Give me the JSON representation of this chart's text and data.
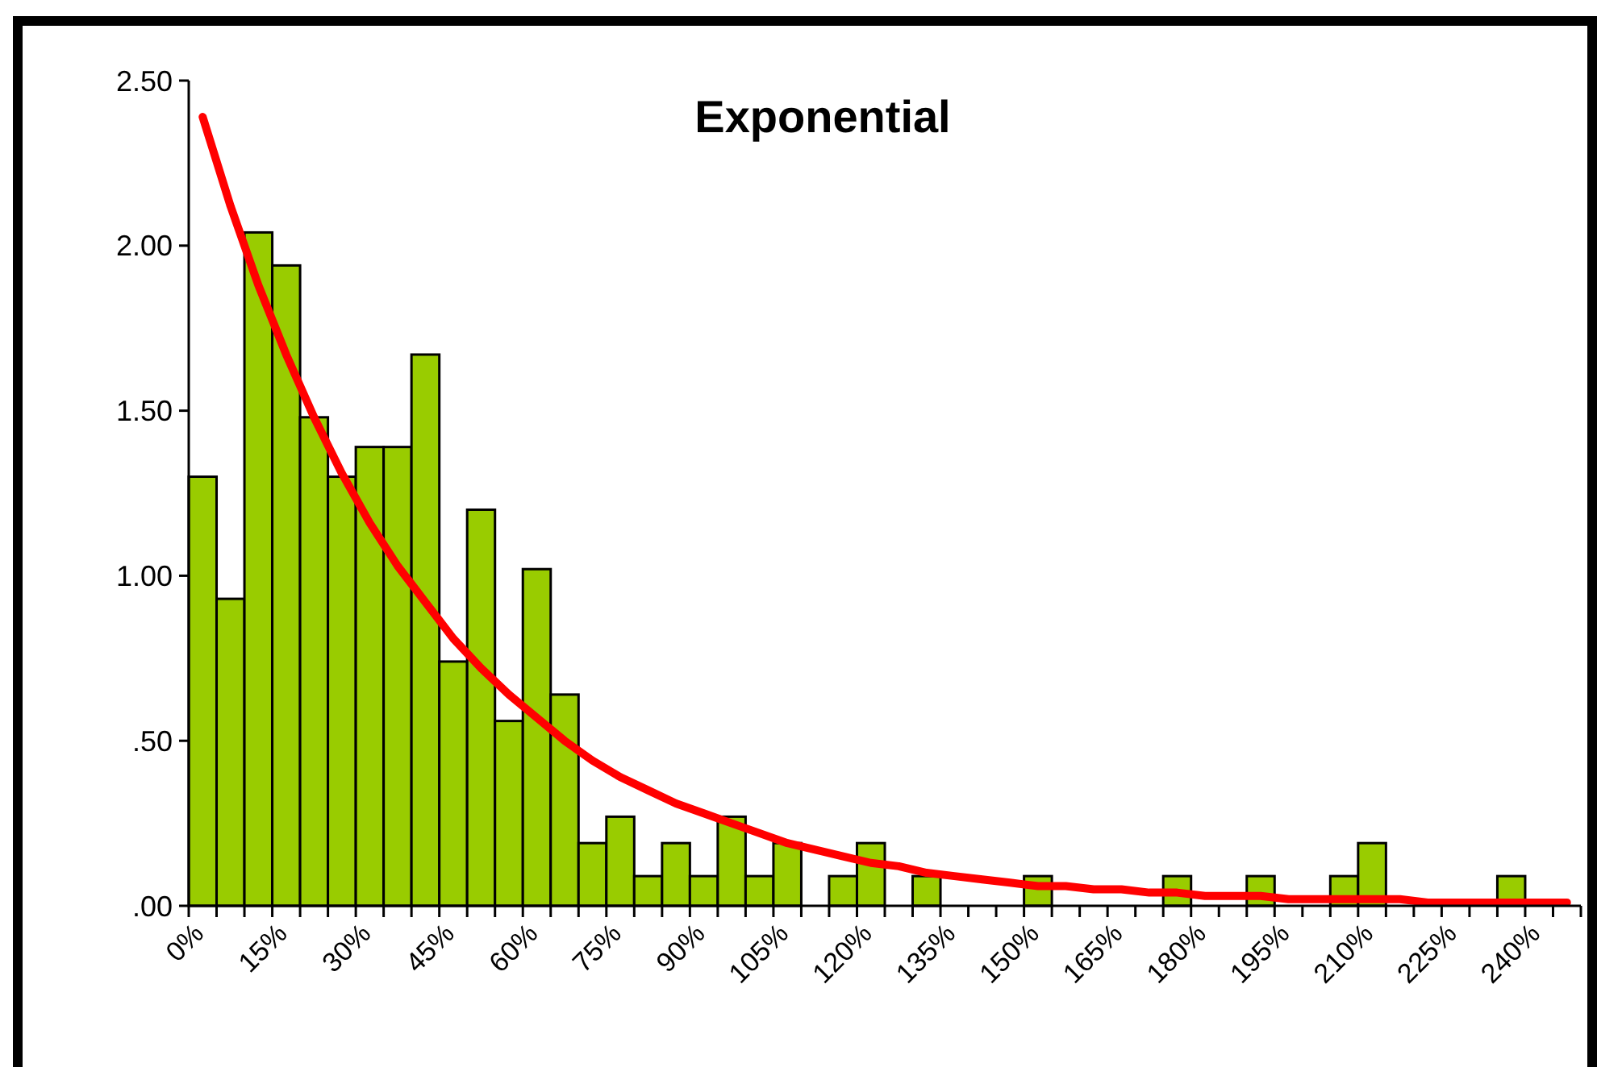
{
  "chart_data": {
    "type": "histogram",
    "title": "Exponential",
    "bins": [
      0,
      5,
      10,
      15,
      20,
      25,
      30,
      35,
      40,
      45,
      50,
      55,
      60,
      65,
      70,
      75,
      80,
      85,
      90,
      95,
      100,
      105,
      110,
      115,
      120,
      125,
      130,
      135,
      140,
      145,
      150,
      155,
      160,
      165,
      170,
      175,
      180,
      185,
      190,
      195,
      200,
      205,
      210,
      215,
      220,
      225,
      230,
      235,
      240,
      245,
      250
    ],
    "series": [
      {
        "color": "#99cc00",
        "values": [
          1.3,
          0.93,
          2.04,
          1.94,
          1.48,
          1.3,
          1.39,
          1.39,
          1.67,
          0.74,
          1.2,
          0.56,
          1.02,
          0.64,
          0.19,
          0.27,
          0.09,
          0.19,
          0.09,
          0.27,
          0.09,
          0.19,
          0,
          0.09,
          0.19,
          0,
          0.09,
          0,
          0,
          0,
          0.09,
          0,
          0,
          0,
          0,
          0.09,
          0,
          0,
          0.09,
          0,
          0,
          0.09,
          0.19,
          0,
          0,
          0,
          0,
          0.09,
          0,
          0
        ]
      },
      {
        "type": "line",
        "color": "#ff0000",
        "x": [
          2.5,
          7.5,
          12.5,
          17.5,
          22.5,
          27.5,
          32.5,
          37.5,
          42.5,
          47.5,
          52.5,
          57.5,
          62.5,
          67.5,
          72.5,
          77.5,
          82.5,
          87.5,
          92.5,
          97.5,
          102.5,
          107.5,
          112.5,
          117.5,
          122.5,
          127.5,
          132.5,
          137.5,
          142.5,
          147.5,
          152.5,
          157.5,
          162.5,
          167.5,
          172.5,
          177.5,
          182.5,
          187.5,
          192.5,
          197.5,
          202.5,
          207.5,
          212.5,
          217.5,
          222.5,
          227.5,
          232.5,
          237.5,
          242.5,
          247.5
        ],
        "values": [
          2.39,
          2.12,
          1.88,
          1.67,
          1.48,
          1.31,
          1.16,
          1.03,
          0.92,
          0.81,
          0.72,
          0.64,
          0.57,
          0.5,
          0.44,
          0.39,
          0.35,
          0.31,
          0.28,
          0.25,
          0.22,
          0.19,
          0.17,
          0.15,
          0.13,
          0.12,
          0.1,
          0.09,
          0.08,
          0.07,
          0.06,
          0.06,
          0.05,
          0.05,
          0.04,
          0.04,
          0.03,
          0.03,
          0.03,
          0.02,
          0.02,
          0.02,
          0.02,
          0.02,
          0.01,
          0.01,
          0.01,
          0.01,
          0.01,
          0.01
        ]
      }
    ],
    "xlim": [
      0,
      250
    ],
    "xticks": [
      {
        "value": 0,
        "label": "0%"
      },
      {
        "value": 5,
        "label": null
      },
      {
        "value": 10,
        "label": null
      },
      {
        "value": 15,
        "label": "15%"
      },
      {
        "value": 20,
        "label": null
      },
      {
        "value": 25,
        "label": null
      },
      {
        "value": 30,
        "label": "30%"
      },
      {
        "value": 35,
        "label": null
      },
      {
        "value": 40,
        "label": null
      },
      {
        "value": 45,
        "label": "45%"
      },
      {
        "value": 50,
        "label": null
      },
      {
        "value": 55,
        "label": null
      },
      {
        "value": 60,
        "label": "60%"
      },
      {
        "value": 65,
        "label": null
      },
      {
        "value": 70,
        "label": null
      },
      {
        "value": 75,
        "label": "75%"
      },
      {
        "value": 80,
        "label": null
      },
      {
        "value": 85,
        "label": null
      },
      {
        "value": 90,
        "label": "90%"
      },
      {
        "value": 95,
        "label": null
      },
      {
        "value": 100,
        "label": null
      },
      {
        "value": 105,
        "label": "105%"
      },
      {
        "value": 110,
        "label": null
      },
      {
        "value": 115,
        "label": null
      },
      {
        "value": 120,
        "label": "120%"
      },
      {
        "value": 125,
        "label": null
      },
      {
        "value": 130,
        "label": null
      },
      {
        "value": 135,
        "label": "135%"
      },
      {
        "value": 140,
        "label": null
      },
      {
        "value": 145,
        "label": null
      },
      {
        "value": 150,
        "label": "150%"
      },
      {
        "value": 155,
        "label": null
      },
      {
        "value": 160,
        "label": null
      },
      {
        "value": 165,
        "label": "165%"
      },
      {
        "value": 170,
        "label": null
      },
      {
        "value": 175,
        "label": null
      },
      {
        "value": 180,
        "label": "180%"
      },
      {
        "value": 185,
        "label": null
      },
      {
        "value": 190,
        "label": null
      },
      {
        "value": 195,
        "label": "195%"
      },
      {
        "value": 200,
        "label": null
      },
      {
        "value": 205,
        "label": null
      },
      {
        "value": 210,
        "label": "210%"
      },
      {
        "value": 215,
        "label": null
      },
      {
        "value": 220,
        "label": null
      },
      {
        "value": 225,
        "label": "225%"
      },
      {
        "value": 230,
        "label": null
      },
      {
        "value": 235,
        "label": null
      },
      {
        "value": 240,
        "label": "240%"
      },
      {
        "value": 245,
        "label": null
      },
      {
        "value": 250,
        "label": null
      }
    ],
    "ylim": [
      0,
      2.5
    ],
    "yticks": [
      {
        "value": 0,
        "label": ".00"
      },
      {
        "value": 0.5,
        "label": ".50"
      },
      {
        "value": 1,
        "label": "1.00"
      },
      {
        "value": 1.5,
        "label": "1.50"
      },
      {
        "value": 2,
        "label": "2.00"
      },
      {
        "value": 2.5,
        "label": "2.50"
      }
    ],
    "grid": false,
    "marker": "none",
    "line_style": "solid"
  }
}
